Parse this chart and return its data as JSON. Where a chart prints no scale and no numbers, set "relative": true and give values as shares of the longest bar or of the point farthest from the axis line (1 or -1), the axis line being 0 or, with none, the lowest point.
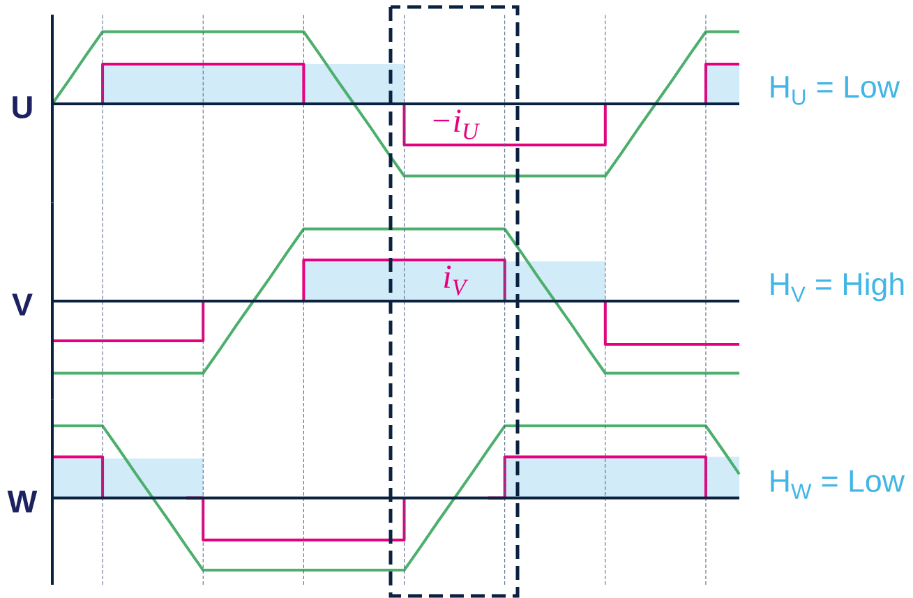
{
  "chart_data": [
    {
      "type": "line",
      "ylabel": "U",
      "relative": true,
      "grid": "x",
      "categories": [
        null,
        null,
        null,
        null,
        null,
        null,
        null,
        null,
        null,
        null,
        null,
        null,
        null,
        null,
        null,
        null,
        null,
        null,
        null,
        null,
        null,
        null,
        null,
        null,
        null,
        null,
        null,
        null,
        null,
        null,
        null,
        null,
        null,
        null,
        null,
        null,
        null,
        null,
        null,
        null,
        null,
        null
      ],
      "series": [
        {
          "type": "area",
          "color": "#d1ebf8",
          "values": [
            null,
            null,
            null,
            0.55,
            0.55,
            0.55,
            0.55,
            0.55,
            0.55,
            0.55,
            0.55,
            0.55,
            0.55,
            0.55,
            0.55,
            0.55,
            0.55,
            0.55,
            0.55,
            0.55,
            0.55,
            0.55,
            null,
            null,
            null,
            null,
            null,
            null,
            null,
            null,
            null,
            null,
            null,
            null,
            null,
            null,
            null,
            null,
            null,
            0.55,
            0.55,
            0.55
          ]
        },
        {
          "color": "#4caf6c",
          "values": [
            0,
            0.33,
            0.67,
            1,
            1,
            1,
            1,
            1,
            1,
            1,
            1,
            1,
            1,
            1,
            1,
            1,
            0.67,
            0.33,
            0,
            -0.33,
            -0.67,
            -1,
            -1,
            -1,
            -1,
            -1,
            -1,
            -1,
            -1,
            -1,
            -1,
            -1,
            -1,
            -1,
            -0.67,
            -0.33,
            0,
            0.33,
            0.67,
            1,
            1,
            1
          ]
        },
        {
          "type": "step",
          "name": "−i$_{U}$",
          "color": "#e6007e",
          "values": [
            null,
            null,
            0,
            0.55,
            0.55,
            0.55,
            0.55,
            0.55,
            0.55,
            0.55,
            0.55,
            0.55,
            0.55,
            0.55,
            0.55,
            0,
            null,
            null,
            null,
            null,
            0,
            -0.57,
            -0.57,
            -0.57,
            -0.57,
            -0.57,
            -0.57,
            -0.57,
            -0.57,
            -0.57,
            -0.57,
            -0.57,
            -0.57,
            0,
            null,
            null,
            null,
            null,
            0,
            0.55,
            0.55,
            0.55
          ]
        }
      ],
      "annotations": [
        "H$_{U}$ = Low"
      ]
    },
    {
      "type": "line",
      "ylabel": "V",
      "relative": true,
      "grid": "x",
      "categories": [
        null,
        null,
        null,
        null,
        null,
        null,
        null,
        null,
        null,
        null,
        null,
        null,
        null,
        null,
        null,
        null,
        null,
        null,
        null,
        null,
        null,
        null,
        null,
        null,
        null,
        null,
        null,
        null,
        null,
        null,
        null,
        null,
        null,
        null,
        null,
        null,
        null,
        null,
        null,
        null,
        null,
        null
      ],
      "series": [
        {
          "type": "area",
          "color": "#d1ebf8",
          "values": [
            null,
            null,
            null,
            null,
            null,
            null,
            null,
            null,
            null,
            null,
            null,
            null,
            null,
            null,
            null,
            0.55,
            0.55,
            0.55,
            0.55,
            0.55,
            0.55,
            0.55,
            0.55,
            0.55,
            0.55,
            0.55,
            0.55,
            0.55,
            0.55,
            0.55,
            0.55,
            0.55,
            0.55,
            0.55,
            null,
            null,
            null,
            null,
            null,
            null,
            null,
            null
          ]
        },
        {
          "color": "#4caf6c",
          "values": [
            -1,
            -1,
            -1,
            -1,
            -1,
            -1,
            -1,
            -1,
            -1,
            -1,
            -0.67,
            -0.33,
            0,
            0.33,
            0.67,
            1,
            1,
            1,
            1,
            1,
            1,
            1,
            1,
            1,
            1,
            1,
            1,
            1,
            0.67,
            0.33,
            0,
            -0.33,
            -0.67,
            -1,
            -1,
            -1,
            -1,
            -1,
            -1,
            -1,
            -1,
            -1
          ]
        },
        {
          "type": "step",
          "name": "i$_{V}$",
          "color": "#e6007e",
          "values": [
            -0.55,
            -0.55,
            -0.55,
            -0.55,
            -0.55,
            -0.55,
            -0.55,
            -0.55,
            -0.55,
            0,
            null,
            null,
            null,
            null,
            0,
            0.57,
            0.57,
            0.57,
            0.57,
            0.57,
            0.57,
            0.57,
            0.57,
            0.57,
            0.57,
            0.57,
            0.57,
            0,
            null,
            null,
            null,
            null,
            0,
            -0.6,
            -0.6,
            -0.6,
            -0.6,
            -0.6,
            -0.6,
            -0.6,
            -0.6,
            -0.6
          ]
        }
      ],
      "annotations": [
        "H$_{V}$ = High"
      ]
    },
    {
      "type": "line",
      "ylabel": "W",
      "relative": true,
      "grid": "x",
      "categories": [
        null,
        null,
        null,
        null,
        null,
        null,
        null,
        null,
        null,
        null,
        null,
        null,
        null,
        null,
        null,
        null,
        null,
        null,
        null,
        null,
        null,
        null,
        null,
        null,
        null,
        null,
        null,
        null,
        null,
        null,
        null,
        null,
        null,
        null,
        null,
        null,
        null,
        null,
        null,
        null,
        null,
        null
      ],
      "series": [
        {
          "type": "area",
          "color": "#d1ebf8",
          "values": [
            0.55,
            0.55,
            0.55,
            0.55,
            0.55,
            0.55,
            0.55,
            0.55,
            0.55,
            0.55,
            null,
            null,
            null,
            null,
            null,
            null,
            null,
            null,
            null,
            null,
            null,
            null,
            null,
            null,
            null,
            null,
            null,
            0.57,
            0.57,
            0.57,
            0.57,
            0.57,
            0.57,
            0.57,
            0.57,
            0.57,
            0.57,
            0.57,
            0.57,
            0.57,
            0.57,
            0.57
          ]
        },
        {
          "color": "#4caf6c",
          "values": [
            1,
            1,
            1,
            1,
            0.67,
            0.33,
            0,
            -0.33,
            -0.67,
            -1,
            -1,
            -1,
            -1,
            -1,
            -1,
            -1,
            -1,
            -1,
            -1,
            -1,
            -1,
            -1,
            -0.67,
            -0.33,
            0,
            0.33,
            0.67,
            1,
            1,
            1,
            1,
            1,
            1,
            1,
            1,
            1,
            1,
            1,
            1,
            1,
            0.67,
            0.33
          ]
        },
        {
          "type": "step",
          "color": "#e6007e",
          "values": [
            0.57,
            0.57,
            0.57,
            0,
            null,
            null,
            null,
            null,
            0,
            -0.58,
            -0.58,
            -0.58,
            -0.58,
            -0.58,
            -0.58,
            -0.58,
            -0.58,
            -0.58,
            -0.58,
            -0.58,
            -0.58,
            0,
            null,
            null,
            null,
            null,
            0,
            0.57,
            0.57,
            0.57,
            0.57,
            0.57,
            0.57,
            0.57,
            0.57,
            0.57,
            0.57,
            0.57,
            0.57,
            0,
            null,
            null
          ]
        }
      ],
      "annotations": [
        "H$_{W}$ = Low"
      ]
    }
  ]
}
